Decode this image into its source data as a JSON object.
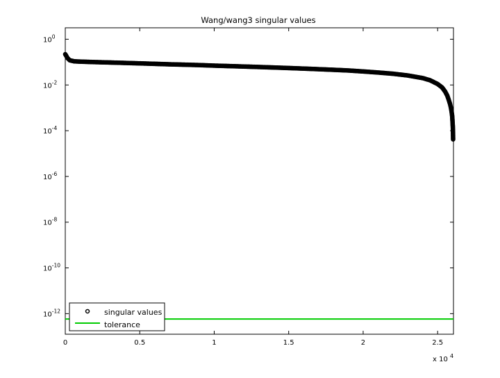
{
  "chart_data": {
    "type": "scatter",
    "title": "Wang/wang3 singular values",
    "xlabel": "",
    "ylabel": "",
    "x_multiplier_label": "x 10",
    "x_multiplier_exp": "4",
    "xlim": [
      0,
      26064
    ],
    "ylim_log10": [
      -12.9,
      0.5
    ],
    "y_scale": "log",
    "grid": false,
    "x_ticks": [
      {
        "value": 0,
        "label": "0"
      },
      {
        "value": 5000,
        "label": "0.5"
      },
      {
        "value": 10000,
        "label": "1"
      },
      {
        "value": 15000,
        "label": "1.5"
      },
      {
        "value": 20000,
        "label": "2"
      },
      {
        "value": 25000,
        "label": "2.5"
      }
    ],
    "y_ticks": [
      {
        "exp": 0,
        "base": "10",
        "sup": "0"
      },
      {
        "exp": -2,
        "base": "10",
        "sup": "-2"
      },
      {
        "exp": -4,
        "base": "10",
        "sup": "-4"
      },
      {
        "exp": -6,
        "base": "10",
        "sup": "-6"
      },
      {
        "exp": -8,
        "base": "10",
        "sup": "-8"
      },
      {
        "exp": -10,
        "base": "10",
        "sup": "-10"
      },
      {
        "exp": -12,
        "base": "10",
        "sup": "-12"
      }
    ],
    "series": [
      {
        "name": "singular values",
        "marker": "circle",
        "color": "#000000",
        "points": [
          [
            0,
            0.22
          ],
          [
            60,
            0.19
          ],
          [
            150,
            0.15
          ],
          [
            300,
            0.12
          ],
          [
            600,
            0.108
          ],
          [
            1000,
            0.105
          ],
          [
            2000,
            0.1
          ],
          [
            3000,
            0.096
          ],
          [
            4000,
            0.092
          ],
          [
            5000,
            0.088
          ],
          [
            6000,
            0.084
          ],
          [
            7000,
            0.08
          ],
          [
            8000,
            0.077
          ],
          [
            9000,
            0.074
          ],
          [
            10000,
            0.07
          ],
          [
            11000,
            0.067
          ],
          [
            12000,
            0.064
          ],
          [
            13000,
            0.061
          ],
          [
            14000,
            0.058
          ],
          [
            15000,
            0.055
          ],
          [
            16000,
            0.052
          ],
          [
            17000,
            0.049
          ],
          [
            18000,
            0.046
          ],
          [
            19000,
            0.043
          ],
          [
            20000,
            0.039
          ],
          [
            21000,
            0.035
          ],
          [
            22000,
            0.031
          ],
          [
            23000,
            0.026
          ],
          [
            24000,
            0.02
          ],
          [
            24500,
            0.016
          ],
          [
            25000,
            0.011
          ],
          [
            25300,
            0.0078
          ],
          [
            25500,
            0.0052
          ],
          [
            25650,
            0.0034
          ],
          [
            25750,
            0.0022
          ],
          [
            25830,
            0.0015
          ],
          [
            25880,
            0.0011
          ],
          [
            25920,
            0.0008
          ],
          [
            25950,
            0.0006
          ],
          [
            25980,
            0.00042
          ],
          [
            26000,
            0.00025
          ],
          [
            26020,
            0.00015
          ],
          [
            26030,
            0.0001
          ],
          [
            26040,
            4.2e-05
          ]
        ]
      },
      {
        "name": "tolerance",
        "style": "line",
        "color": "#00cc00",
        "value": 5.8e-13
      }
    ],
    "legend_position": "bottom-left"
  }
}
